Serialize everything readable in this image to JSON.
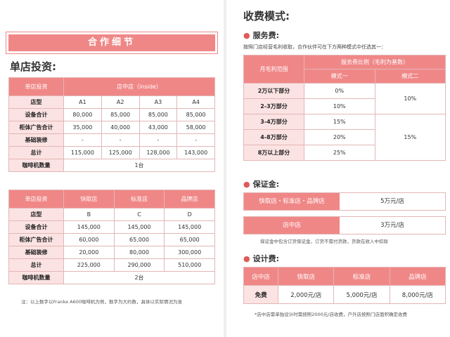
{
  "left": {
    "banner": "合作细节",
    "section_title": "单店投资:",
    "table1": {
      "header_label": "单店投资",
      "header_value": "店中店（inside）",
      "rows": [
        {
          "label": "店型",
          "values": [
            "A1",
            "A2",
            "A3",
            "A4"
          ]
        },
        {
          "label": "设备合计",
          "values": [
            "80,000",
            "85,000",
            "85,000",
            "85,000"
          ]
        },
        {
          "label": "柜体广告合计",
          "values": [
            "35,000",
            "40,000",
            "43,000",
            "58,000"
          ]
        },
        {
          "label": "基础装修",
          "values": [
            "-",
            "-",
            "-",
            "-"
          ]
        },
        {
          "label": "总计",
          "values": [
            "115,000",
            "125,000",
            "128,000",
            "143,000"
          ]
        }
      ],
      "coffee_label": "咖啡机数量",
      "coffee_value": "1台"
    },
    "table2": {
      "header_label": "单店投资",
      "headers": [
        "快取店",
        "标准店",
        "品牌店"
      ],
      "rows": [
        {
          "label": "店型",
          "values": [
            "B",
            "C",
            "D"
          ]
        },
        {
          "label": "设备合计",
          "values": [
            "145,000",
            "145,000",
            "145,000"
          ]
        },
        {
          "label": "柜体广告合计",
          "values": [
            "60,000",
            "65,000",
            "65,000"
          ]
        },
        {
          "label": "基础装修",
          "values": [
            "20,000",
            "80,000",
            "300,000"
          ]
        },
        {
          "label": "总计",
          "values": [
            "225,000",
            "290,000",
            "510,000"
          ]
        }
      ],
      "coffee_label": "咖啡机数量",
      "coffee_value": "2台"
    },
    "note": "注：以上数字以Franke A600咖啡机为例，数字为大约数，具体以实际情况为准"
  },
  "right": {
    "title": "收费模式:",
    "service": {
      "title": "服务费:",
      "desc": "按照门店经营毛利收取，合作伙伴可在下方两种模式中任选其一：",
      "col_range": "月毛利范围",
      "col_ratio": "服务费比例（毛利为基数）",
      "mode1": "模式一",
      "mode2": "模式二",
      "rows": [
        {
          "range": "2万以下部分",
          "m1": "0%"
        },
        {
          "range": "2-3万部分",
          "m1": "10%"
        },
        {
          "range": "3-4万部分",
          "m1": "15%"
        },
        {
          "range": "4-8万部分",
          "m1": "20%"
        },
        {
          "range": "8万以上部分",
          "m1": "25%"
        }
      ],
      "m2_a": "10%",
      "m2_b": "15%"
    },
    "deposit": {
      "title": "保证金:",
      "row1_key": "快取店・标准店・品牌店",
      "row1_val": "5万元/店",
      "row2_key": "店中店",
      "row2_val": "3万元/店",
      "note": "保证金中包含订货保证金，订货不需付货款，货款在收入中扣除"
    },
    "design": {
      "title": "设计费:",
      "headers": [
        "店中店",
        "快取店",
        "标准店",
        "品牌店"
      ],
      "values": [
        "免费",
        "2,000元/店",
        "5,000元/店",
        "8,000元/店"
      ],
      "note": "*店中店需单独设计时需按照2000元/店收费，户外店按照门店面积确定收费"
    }
  }
}
